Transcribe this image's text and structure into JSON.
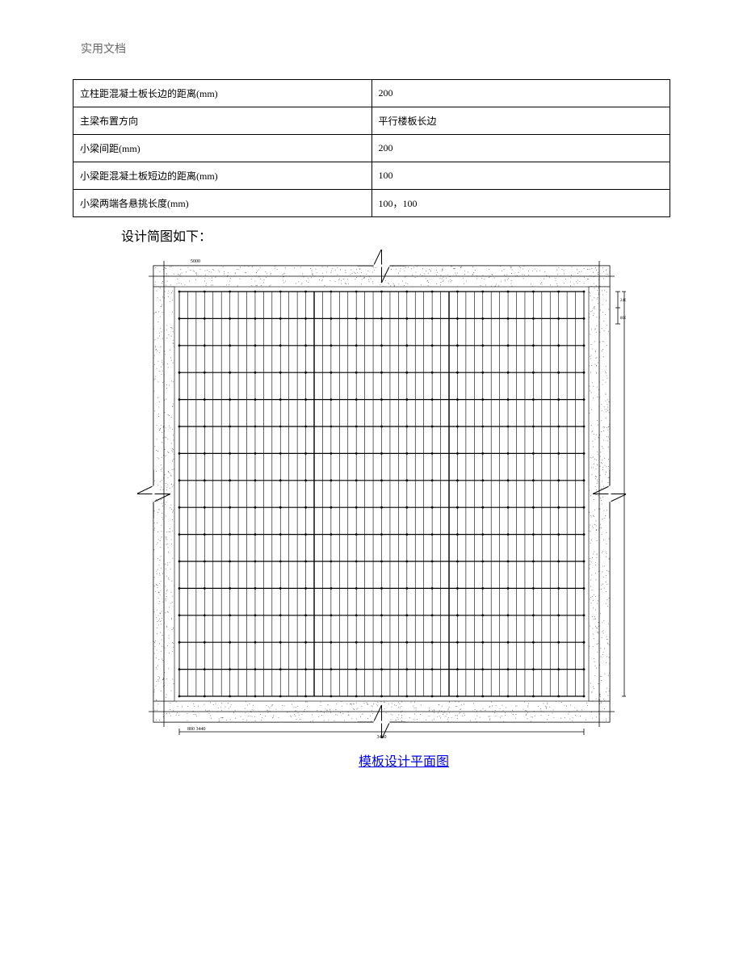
{
  "header": {
    "text": "实用文档"
  },
  "table": {
    "rows": [
      {
        "label": "立柱距混凝土板长边的距离(mm)",
        "value": "200"
      },
      {
        "label": "主梁布置方向",
        "value": "平行楼板长边"
      },
      {
        "label": "小梁间距(mm)",
        "value": "200"
      },
      {
        "label": "小梁距混凝土板短边的距离(mm)",
        "value": "100"
      },
      {
        "label": "小梁两端各悬挑长度(mm)",
        "value": "100，100"
      }
    ]
  },
  "sketch_title": "设计简图如下：",
  "diagram": {
    "caption": "模板设计平面图",
    "caption_color": "#0000ee",
    "caption_fontsize": 16,
    "outer_size": 565,
    "speckle_band": 26,
    "speckle_color": "#6b6b6b",
    "background_color": "#ffffff",
    "break_mark_size": 30,
    "grid": {
      "n_horiz_major": 15,
      "n_vert_minor": 48,
      "n_vert_group_sep": 2,
      "line_color": "#000000",
      "major_h_stroke": 1.2,
      "minor_v_stroke": 0.6,
      "node_radius": 1.4,
      "node_cols": 16
    },
    "dim_lines": {
      "stroke": "#000000",
      "stroke_width": 0.8
    },
    "small_labels": [
      "5000",
      "800",
      "240",
      "800",
      "3440"
    ]
  }
}
